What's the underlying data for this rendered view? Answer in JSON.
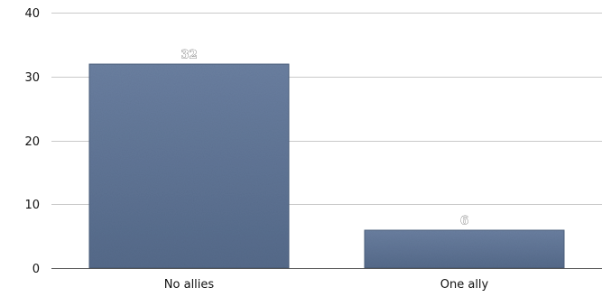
{
  "chart_data": {
    "type": "bar",
    "categories": [
      "No allies",
      "One ally"
    ],
    "values": [
      32,
      6
    ],
    "data_labels": [
      "32",
      "6"
    ],
    "ylim": [
      0,
      40
    ],
    "yticks": [
      0,
      10,
      20,
      30,
      40
    ],
    "ytick_labels": [
      "0",
      "10",
      "20",
      "30",
      "40"
    ],
    "grid": true,
    "legend": false,
    "bar_color": "#5b7090",
    "grid_color": "#c9c9c9"
  }
}
